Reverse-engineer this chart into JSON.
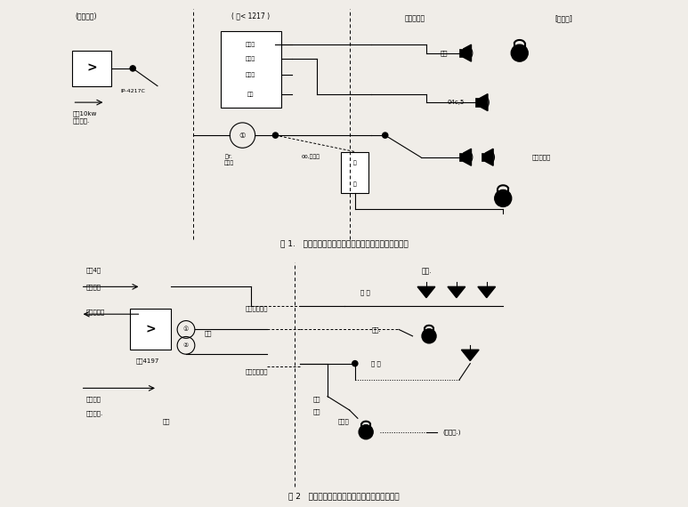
{
  "background_color": "#f0ede8",
  "fig1_caption": "图 1.   低排簿电线利用感内电话联到互相市橘絡优达接圈",
  "fig2_caption": "图 2   低排簿电絡利用喻到成、郁电话絡的达控图",
  "fig1_labels": {
    "top_left": "(低一传台)",
    "left_arrow": "到外10kw\n局交換为.",
    "coupler_label": "IP-4217C",
    "top_center": "( 广< 1217 )",
    "center_box_lines": [
      "调三量",
      "发控制",
      "交控制",
      "工具"
    ],
    "bottom_left_label": "测T.\n复工艺",
    "relay_label": "00,广一址",
    "top_right_label": "仿尘、识好",
    "far_right_top": "[乡向广]",
    "speaker1_label": "仿达",
    "speaker2_label": "04c,5",
    "speaker3_label": "广场广达姓",
    "relay_box_label": [
      "后",
      "如"
    ]
  },
  "fig2_labels": {
    "top_left1": "混合4电",
    "top_left2": "地交換机",
    "left2": "用广一独定",
    "after_box": "广播",
    "user_label": "用户4197",
    "bottom_left1": "互易那电",
    "bottom_left2": "给公使得.",
    "bottom_arrow_label": "达代",
    "center_top": "仿广一连设活",
    "center_bottom": "用广一连活体",
    "right_top_label": "报告.",
    "right_top2": "响 达",
    "right_mid_label": "通联.",
    "right_bottom": "低 括",
    "bottom_center_label1": "户广",
    "bottom_center_label2": "张如",
    "bottom_center2": "坐出定",
    "far_right_bottom": "(义号尾.)"
  }
}
